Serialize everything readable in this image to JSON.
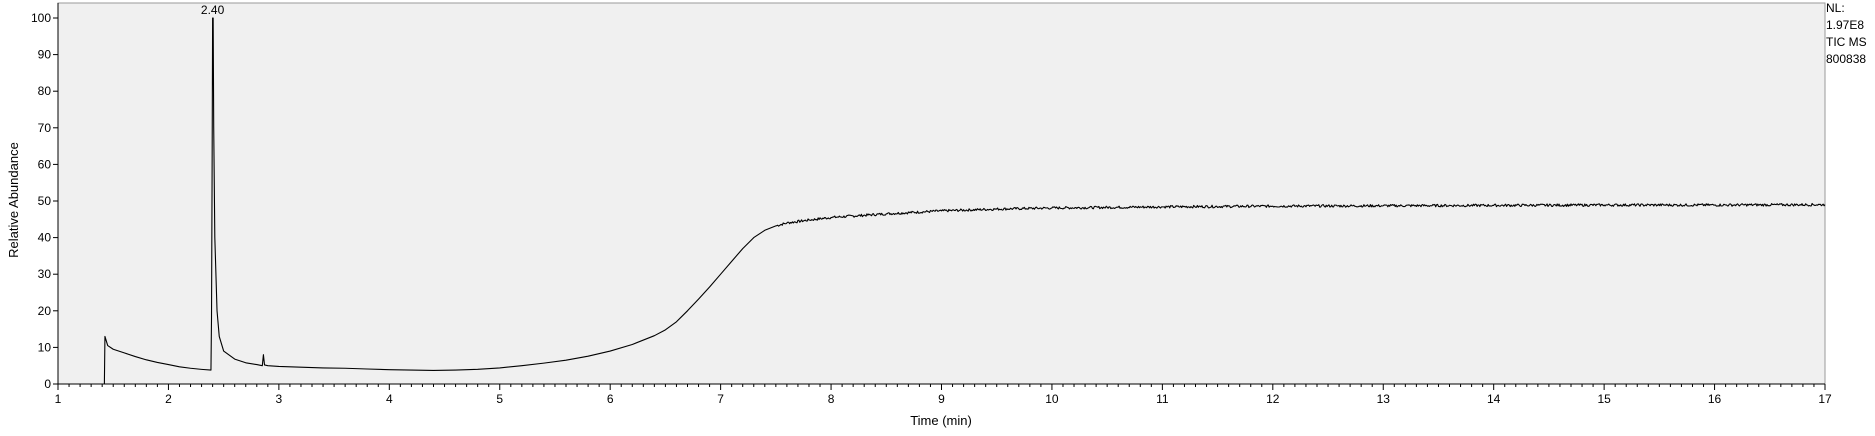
{
  "chart_data": {
    "type": "line",
    "xlabel": "Time (min)",
    "ylabel": "Relative Abundance",
    "xlim": [
      1,
      17
    ],
    "ylim": [
      0,
      100
    ],
    "x_ticks": [
      "1",
      "2",
      "3",
      "4",
      "5",
      "6",
      "7",
      "8",
      "9",
      "10",
      "11",
      "12",
      "13",
      "14",
      "15",
      "16",
      "17"
    ],
    "y_ticks": [
      "0",
      "10",
      "20",
      "30",
      "40",
      "50",
      "60",
      "70",
      "80",
      "90",
      "100"
    ],
    "minor_x_step": 0.1,
    "grid": false,
    "colors": {
      "plot_background": "#f0f0f0",
      "trace": "#000000",
      "axis": "#000000"
    },
    "annotations": [
      {
        "text": "2.40",
        "x": 2.4,
        "y": 100
      }
    ],
    "series": [
      {
        "points": [
          [
            1.0,
            0.0
          ],
          [
            1.42,
            0.0
          ],
          [
            1.425,
            13.0
          ],
          [
            1.45,
            10.5
          ],
          [
            1.5,
            9.5
          ],
          [
            1.6,
            8.5
          ],
          [
            1.7,
            7.5
          ],
          [
            1.8,
            6.6
          ],
          [
            1.9,
            5.9
          ],
          [
            2.0,
            5.3
          ],
          [
            2.1,
            4.7
          ],
          [
            2.2,
            4.3
          ],
          [
            2.3,
            4.0
          ],
          [
            2.385,
            3.8
          ],
          [
            2.39,
            18.0
          ],
          [
            2.395,
            55.0
          ],
          [
            2.4,
            100.0
          ],
          [
            2.405,
            100.0
          ],
          [
            2.41,
            70.0
          ],
          [
            2.42,
            40.0
          ],
          [
            2.44,
            20.0
          ],
          [
            2.46,
            13.0
          ],
          [
            2.5,
            9.0
          ],
          [
            2.6,
            6.8
          ],
          [
            2.7,
            5.8
          ],
          [
            2.8,
            5.3
          ],
          [
            2.85,
            5.0
          ],
          [
            2.86,
            8.0
          ],
          [
            2.87,
            5.2
          ],
          [
            2.9,
            5.0
          ],
          [
            3.0,
            4.8
          ],
          [
            3.2,
            4.6
          ],
          [
            3.4,
            4.4
          ],
          [
            3.6,
            4.3
          ],
          [
            3.8,
            4.1
          ],
          [
            4.0,
            3.9
          ],
          [
            4.2,
            3.8
          ],
          [
            4.4,
            3.7
          ],
          [
            4.6,
            3.8
          ],
          [
            4.8,
            4.0
          ],
          [
            5.0,
            4.4
          ],
          [
            5.2,
            5.0
          ],
          [
            5.4,
            5.7
          ],
          [
            5.6,
            6.5
          ],
          [
            5.8,
            7.6
          ],
          [
            6.0,
            9.0
          ],
          [
            6.2,
            10.8
          ],
          [
            6.4,
            13.2
          ],
          [
            6.5,
            14.8
          ],
          [
            6.6,
            17.0
          ],
          [
            6.7,
            20.0
          ],
          [
            6.8,
            23.2
          ],
          [
            6.9,
            26.5
          ],
          [
            7.0,
            30.0
          ],
          [
            7.1,
            33.5
          ],
          [
            7.2,
            37.0
          ],
          [
            7.3,
            40.0
          ],
          [
            7.4,
            42.0
          ],
          [
            7.5,
            43.2
          ],
          [
            7.6,
            44.0
          ],
          [
            7.8,
            44.8
          ],
          [
            8.0,
            45.5
          ],
          [
            8.5,
            46.5
          ],
          [
            9.0,
            47.3
          ],
          [
            9.5,
            47.8
          ],
          [
            10.0,
            48.1
          ],
          [
            11.0,
            48.4
          ],
          [
            12.0,
            48.6
          ],
          [
            13.0,
            48.7
          ],
          [
            14.0,
            48.8
          ],
          [
            15.0,
            48.9
          ],
          [
            16.0,
            48.9
          ],
          [
            17.0,
            49.0
          ]
        ]
      }
    ]
  },
  "side_info": {
    "line1": "NL:",
    "line2": "1.97E8",
    "line3": "TIC  MS",
    "line4": "800838"
  }
}
